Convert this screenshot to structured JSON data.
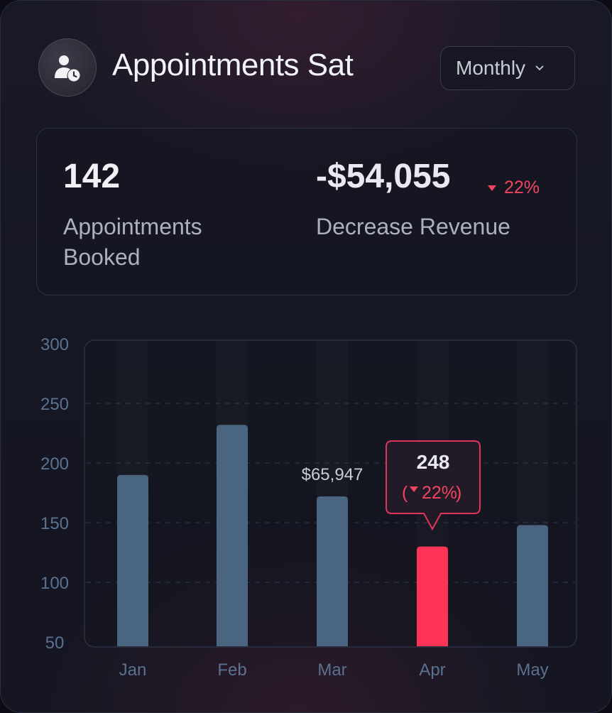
{
  "header": {
    "title": "Appointments Sat",
    "icon": "user-clock-icon",
    "period_selector": {
      "selected": "Monthly"
    }
  },
  "stats": {
    "appointments": {
      "value": "142",
      "label": "Appointments Booked"
    },
    "revenue": {
      "value": "-$54,055",
      "change": "22%",
      "change_direction": "down",
      "label": "Decrease Revenue"
    }
  },
  "colors": {
    "bar": "#4a6580",
    "highlight": "#ff3355",
    "negative": "#f0455f",
    "axis_text": "#5a7290"
  },
  "chart_data": {
    "type": "bar",
    "categories": [
      "Jan",
      "Feb",
      "Mar",
      "Apr",
      "May"
    ],
    "values": [
      190,
      232,
      172,
      130,
      148
    ],
    "ylim": [
      50,
      300
    ],
    "yticks": [
      50,
      100,
      150,
      200,
      250,
      300
    ],
    "grid": true,
    "highlight_index": 3,
    "annotations": [
      {
        "category": "Mar",
        "text": "$65,947"
      },
      {
        "category": "Apr",
        "type": "tooltip",
        "value": "248",
        "change": "22%",
        "change_direction": "down"
      }
    ]
  }
}
